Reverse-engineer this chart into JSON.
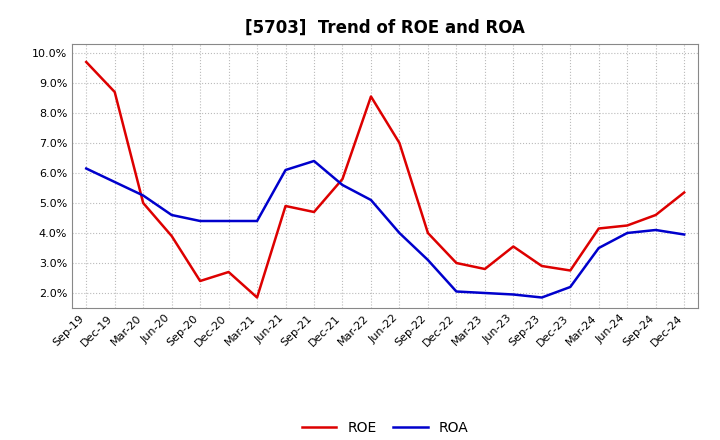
{
  "title": "[5703]  Trend of ROE and ROA",
  "x_labels": [
    "Sep-19",
    "Dec-19",
    "Mar-20",
    "Jun-20",
    "Sep-20",
    "Dec-20",
    "Mar-21",
    "Jun-21",
    "Sep-21",
    "Dec-21",
    "Mar-22",
    "Jun-22",
    "Sep-22",
    "Dec-22",
    "Mar-23",
    "Jun-23",
    "Sep-23",
    "Dec-23",
    "Mar-24",
    "Jun-24",
    "Sep-24",
    "Dec-24"
  ],
  "roe": [
    9.7,
    8.7,
    5.0,
    3.9,
    2.4,
    2.7,
    1.85,
    4.9,
    4.7,
    5.8,
    8.55,
    7.0,
    4.0,
    3.0,
    2.8,
    3.55,
    2.9,
    2.75,
    4.15,
    4.25,
    4.6,
    5.35
  ],
  "roa": [
    6.15,
    5.7,
    5.25,
    4.6,
    4.4,
    4.4,
    4.4,
    6.1,
    6.4,
    5.6,
    5.1,
    4.0,
    3.1,
    2.05,
    2.0,
    1.95,
    1.85,
    2.2,
    3.5,
    4.0,
    4.1,
    3.95
  ],
  "roe_color": "#dd0000",
  "roa_color": "#0000cc",
  "ylim": [
    1.5,
    10.3
  ],
  "yticks": [
    2.0,
    3.0,
    4.0,
    5.0,
    6.0,
    7.0,
    8.0,
    9.0,
    10.0
  ],
  "background_color": "#ffffff",
  "grid_color": "#bbbbbb",
  "title_fontsize": 12,
  "axis_fontsize": 8,
  "legend_fontsize": 10,
  "linewidth": 1.8
}
